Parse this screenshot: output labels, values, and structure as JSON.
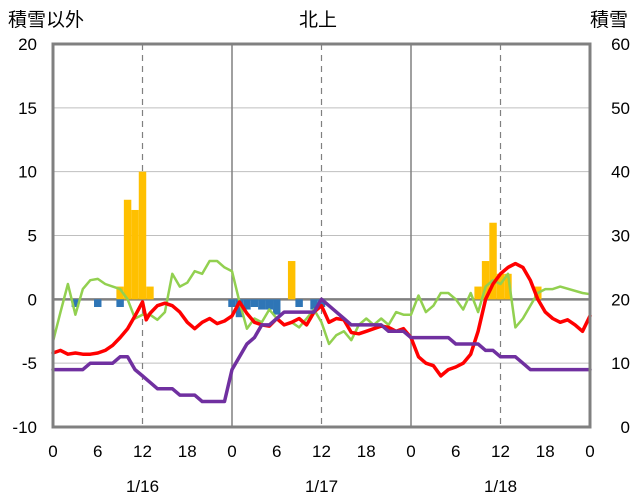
{
  "chart_data": {
    "type": "bar+line",
    "title": "北上",
    "left_axis_title": "積雪以外",
    "right_axis_title": "積雪",
    "left_ylim": [
      -10,
      20
    ],
    "left_yticks": [
      20,
      15,
      10,
      5,
      0,
      -5,
      -10
    ],
    "right_ylim": [
      0,
      60
    ],
    "right_yticks": [
      60,
      50,
      40,
      30,
      20,
      10,
      0
    ],
    "x_hours_range": [
      0,
      72
    ],
    "x_tick_labels": [
      "0",
      "6",
      "12",
      "18",
      "0",
      "6",
      "12",
      "18",
      "0",
      "6",
      "12",
      "18",
      "0"
    ],
    "day_labels": [
      "1/16",
      "1/17",
      "1/18"
    ],
    "colors": {
      "snowfall": "#FFC000",
      "precipitation": "#2E75B6",
      "temperature": "#FF0000",
      "wind": "#92D050",
      "snow_depth": "#7030A0"
    },
    "snowfall_bars": [
      {
        "x": 9,
        "v": 1
      },
      {
        "x": 10,
        "v": 7.8
      },
      {
        "x": 11,
        "v": 7
      },
      {
        "x": 12,
        "v": 10
      },
      {
        "x": 13,
        "v": 1
      },
      {
        "x": 32,
        "v": 3
      },
      {
        "x": 57,
        "v": 1
      },
      {
        "x": 58,
        "v": 3
      },
      {
        "x": 59,
        "v": 6
      },
      {
        "x": 60,
        "v": 2
      },
      {
        "x": 61,
        "v": 2
      },
      {
        "x": 65,
        "v": 1
      }
    ],
    "precip_marks": [
      {
        "x": 3,
        "v": -0.6
      },
      {
        "x": 6,
        "v": -0.6
      },
      {
        "x": 9,
        "v": -0.6
      },
      {
        "x": 24,
        "v": -0.6
      },
      {
        "x": 25,
        "v": -1.4
      },
      {
        "x": 26,
        "v": -0.8
      },
      {
        "x": 27,
        "v": -0.6
      },
      {
        "x": 28,
        "v": -0.8
      },
      {
        "x": 29,
        "v": -0.8
      },
      {
        "x": 30,
        "v": -1.2
      },
      {
        "x": 33,
        "v": -0.6
      },
      {
        "x": 35,
        "v": -0.8
      },
      {
        "x": 36,
        "v": -0.6
      }
    ],
    "temperature": [
      [
        0,
        -4.2
      ],
      [
        1,
        -4.0
      ],
      [
        2,
        -4.3
      ],
      [
        3,
        -4.2
      ],
      [
        4,
        -4.3
      ],
      [
        5,
        -4.3
      ],
      [
        6,
        -4.2
      ],
      [
        7,
        -4.0
      ],
      [
        8,
        -3.6
      ],
      [
        9,
        -3.0
      ],
      [
        10,
        -2.3
      ],
      [
        11,
        -1.3
      ],
      [
        12,
        -0.2
      ],
      [
        12.5,
        -1.6
      ],
      [
        13,
        -1.1
      ],
      [
        14,
        -0.5
      ],
      [
        15,
        -0.3
      ],
      [
        16,
        -0.5
      ],
      [
        17,
        -1.0
      ],
      [
        18,
        -1.8
      ],
      [
        19,
        -2.3
      ],
      [
        20,
        -1.8
      ],
      [
        21,
        -1.5
      ],
      [
        22,
        -1.9
      ],
      [
        23,
        -1.7
      ],
      [
        24,
        -1.3
      ],
      [
        25,
        -0.2
      ],
      [
        26,
        -1.1
      ],
      [
        27,
        -1.8
      ],
      [
        28,
        -2.0
      ],
      [
        29,
        -2.1
      ],
      [
        30,
        -1.5
      ],
      [
        31,
        -2.0
      ],
      [
        32,
        -1.8
      ],
      [
        33,
        -1.5
      ],
      [
        34,
        -2.0
      ],
      [
        35,
        -1.0
      ],
      [
        36,
        -0.5
      ],
      [
        37,
        -1.8
      ],
      [
        38,
        -1.5
      ],
      [
        39,
        -1.6
      ],
      [
        40,
        -2.6
      ],
      [
        41,
        -2.7
      ],
      [
        42,
        -2.5
      ],
      [
        43,
        -2.3
      ],
      [
        44,
        -2.1
      ],
      [
        45,
        -2.2
      ],
      [
        46,
        -2.5
      ],
      [
        47,
        -2.3
      ],
      [
        48,
        -3.0
      ],
      [
        49,
        -4.5
      ],
      [
        50,
        -5.0
      ],
      [
        51,
        -5.2
      ],
      [
        52,
        -6.0
      ],
      [
        53,
        -5.5
      ],
      [
        54,
        -5.3
      ],
      [
        55,
        -5.0
      ],
      [
        56,
        -4.3
      ],
      [
        57,
        -2.5
      ],
      [
        58,
        0
      ],
      [
        59,
        1.2
      ],
      [
        60,
        2.0
      ],
      [
        61,
        2.5
      ],
      [
        62,
        2.8
      ],
      [
        63,
        2.5
      ],
      [
        64,
        1.5
      ],
      [
        65,
        0
      ],
      [
        66,
        -1.0
      ],
      [
        67,
        -1.5
      ],
      [
        68,
        -1.8
      ],
      [
        69,
        -1.6
      ],
      [
        70,
        -2.0
      ],
      [
        71,
        -2.5
      ],
      [
        72,
        -1.3
      ]
    ],
    "wind": [
      [
        0,
        -3.3
      ],
      [
        1,
        -1
      ],
      [
        2,
        1.2
      ],
      [
        3,
        -1.2
      ],
      [
        4,
        0.8
      ],
      [
        5,
        1.5
      ],
      [
        6,
        1.6
      ],
      [
        7,
        1.2
      ],
      [
        8,
        1.0
      ],
      [
        9,
        0.8
      ],
      [
        10,
        0
      ],
      [
        11,
        -1.5
      ],
      [
        12,
        -1.2
      ],
      [
        13,
        -1.2
      ],
      [
        14,
        -1.6
      ],
      [
        15,
        -1.0
      ],
      [
        16,
        2.0
      ],
      [
        17,
        1.0
      ],
      [
        18,
        1.3
      ],
      [
        19,
        2.2
      ],
      [
        20,
        2.0
      ],
      [
        21,
        3.0
      ],
      [
        22,
        3.0
      ],
      [
        23,
        2.5
      ],
      [
        24,
        2.2
      ],
      [
        25,
        -0.2
      ],
      [
        26,
        -2.3
      ],
      [
        27,
        -1.5
      ],
      [
        28,
        -1.8
      ],
      [
        29,
        -0.8
      ],
      [
        30,
        -1.5
      ],
      [
        31,
        -2.0
      ],
      [
        32,
        -1.8
      ],
      [
        33,
        -2.2
      ],
      [
        34,
        -1.5
      ],
      [
        35,
        -0.8
      ],
      [
        36,
        -1.8
      ],
      [
        37,
        -3.5
      ],
      [
        38,
        -2.8
      ],
      [
        39,
        -2.5
      ],
      [
        40,
        -3.2
      ],
      [
        41,
        -2.0
      ],
      [
        42,
        -1.5
      ],
      [
        43,
        -2.0
      ],
      [
        44,
        -1.5
      ],
      [
        45,
        -2.0
      ],
      [
        46,
        -1.0
      ],
      [
        47,
        -1.2
      ],
      [
        48,
        -1.2
      ],
      [
        49,
        0.3
      ],
      [
        50,
        -1.0
      ],
      [
        51,
        -0.5
      ],
      [
        52,
        0.5
      ],
      [
        53,
        0.5
      ],
      [
        54,
        0
      ],
      [
        55,
        -0.8
      ],
      [
        56,
        0.5
      ],
      [
        57,
        -1.0
      ],
      [
        58,
        1.0
      ],
      [
        59,
        1.5
      ],
      [
        60,
        1.2
      ],
      [
        61,
        2.0
      ],
      [
        62,
        -2.2
      ],
      [
        63,
        -1.5
      ],
      [
        64,
        -0.5
      ],
      [
        65,
        0.5
      ],
      [
        66,
        0.8
      ],
      [
        67,
        0.8
      ],
      [
        68,
        1.0
      ],
      [
        71,
        0.5
      ],
      [
        72,
        0.4
      ]
    ],
    "snow_depth": [
      [
        0,
        9
      ],
      [
        1,
        9
      ],
      [
        2,
        9
      ],
      [
        3,
        9
      ],
      [
        4,
        9
      ],
      [
        5,
        10
      ],
      [
        6,
        10
      ],
      [
        7,
        10
      ],
      [
        8,
        10
      ],
      [
        9,
        11
      ],
      [
        10,
        11
      ],
      [
        11,
        9
      ],
      [
        12,
        8
      ],
      [
        13,
        7
      ],
      [
        14,
        6
      ],
      [
        15,
        6
      ],
      [
        16,
        6
      ],
      [
        17,
        5
      ],
      [
        18,
        5
      ],
      [
        19,
        5
      ],
      [
        20,
        4
      ],
      [
        21,
        4
      ],
      [
        22,
        4
      ],
      [
        23,
        4
      ],
      [
        24,
        9
      ],
      [
        25,
        11
      ],
      [
        26,
        13
      ],
      [
        27,
        14
      ],
      [
        28,
        16
      ],
      [
        29,
        16
      ],
      [
        30,
        17
      ],
      [
        31,
        18
      ],
      [
        32,
        18
      ],
      [
        33,
        18
      ],
      [
        34,
        18
      ],
      [
        35,
        18
      ],
      [
        36,
        20
      ],
      [
        37,
        19
      ],
      [
        38,
        18
      ],
      [
        39,
        17
      ],
      [
        40,
        16
      ],
      [
        41,
        16
      ],
      [
        42,
        16
      ],
      [
        43,
        16
      ],
      [
        44,
        16
      ],
      [
        45,
        15
      ],
      [
        46,
        15
      ],
      [
        47,
        15
      ],
      [
        48,
        14
      ],
      [
        49,
        14
      ],
      [
        50,
        14
      ],
      [
        51,
        14
      ],
      [
        52,
        14
      ],
      [
        53,
        14
      ],
      [
        54,
        13
      ],
      [
        55,
        13
      ],
      [
        56,
        13
      ],
      [
        57,
        13
      ],
      [
        58,
        12
      ],
      [
        59,
        12
      ],
      [
        60,
        11
      ],
      [
        61,
        11
      ],
      [
        62,
        11
      ],
      [
        63,
        10
      ],
      [
        64,
        9
      ],
      [
        65,
        9
      ],
      [
        66,
        9
      ],
      [
        67,
        9
      ],
      [
        68,
        9
      ],
      [
        69,
        9
      ],
      [
        70,
        9
      ],
      [
        71,
        9
      ],
      [
        72,
        9
      ]
    ]
  }
}
